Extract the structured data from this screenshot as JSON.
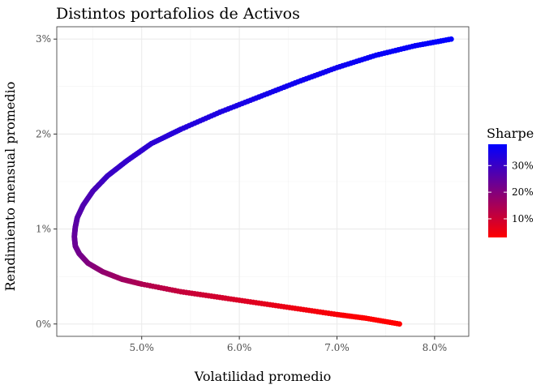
{
  "chart_data": {
    "type": "scatter",
    "title": "Distintos portafolios de Activos",
    "xlabel": "Volatilidad promedio",
    "ylabel": "Rendimiento mensual promedio",
    "xlim": [
      4.13,
      8.35
    ],
    "ylim": [
      -0.13,
      3.13
    ],
    "x_ticks": [
      5,
      6,
      7,
      8
    ],
    "x_tick_labels": [
      "5.0%",
      "6.0%",
      "7.0%",
      "8.0%"
    ],
    "y_ticks": [
      0,
      1,
      2,
      3
    ],
    "y_tick_labels": [
      "0%",
      "1%",
      "2%",
      "3%"
    ],
    "grid": true,
    "legend": {
      "title": "Sharpe",
      "placement": "right",
      "tick_labels": [
        "10%",
        "20%",
        "30%"
      ],
      "tick_values": [
        10,
        20,
        30
      ],
      "range": [
        3,
        38
      ],
      "color_low": "#ff0000",
      "color_high": "#0000ff"
    },
    "series": [
      {
        "x": [
          7.64,
          7.3,
          7.0,
          6.6,
          6.2,
          5.8,
          5.4,
          5.0,
          4.8,
          4.6,
          4.45,
          4.36,
          4.32,
          4.31,
          4.32,
          4.34,
          4.4,
          4.5,
          4.65,
          4.85,
          5.1,
          5.4,
          5.8,
          6.2,
          6.6,
          7.0,
          7.4,
          7.8,
          8.17
        ],
        "y": [
          0.0,
          0.06,
          0.1,
          0.16,
          0.22,
          0.28,
          0.34,
          0.42,
          0.47,
          0.55,
          0.64,
          0.74,
          0.82,
          0.92,
          1.02,
          1.12,
          1.25,
          1.4,
          1.56,
          1.72,
          1.9,
          2.05,
          2.23,
          2.39,
          2.55,
          2.7,
          2.83,
          2.93,
          3.0
        ],
        "sharpe": [
          2,
          3,
          4,
          5,
          7,
          9,
          11,
          14,
          16,
          18,
          20,
          22,
          23,
          24,
          25,
          26,
          27,
          28,
          30,
          31,
          32,
          33,
          34,
          35,
          36,
          36,
          37,
          37,
          38
        ]
      }
    ]
  }
}
